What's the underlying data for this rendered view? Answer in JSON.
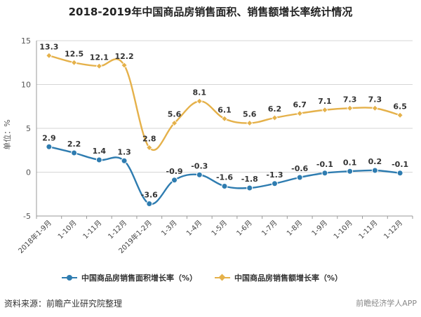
{
  "title": "2018-2019年中国商品房销售面积、销售额增长率统计情况",
  "source_text": "资料来源：前瞻产业研究院整理",
  "bottom_watermark": "前瞻经济学人APP",
  "colors": {
    "area": "#2e7cb0",
    "sales": "#e5b14a",
    "grid": "#d6d6d6",
    "axis": "#999999"
  },
  "chart_data": {
    "type": "line",
    "ylabel": "单位：%",
    "ylim": [
      -5,
      15
    ],
    "yticks": [
      -5,
      0,
      5,
      10,
      15
    ],
    "grid": true,
    "legend_position": "bottom",
    "categories": [
      "2018年1-9月",
      "1-10月",
      "1-11月",
      "1-12月",
      "2019年1-2月",
      "1-3月",
      "1-4月",
      "1-5月",
      "1-6月",
      "1-7月",
      "1-8月",
      "1-9月",
      "1-10月",
      "1-11月",
      "1-12月"
    ],
    "series": [
      {
        "name": "中国商品房销售面积增长率（%）",
        "marker": "circle",
        "color": "#2e7cb0",
        "values": [
          2.9,
          2.2,
          1.4,
          1.3,
          -3.6,
          -0.9,
          -0.3,
          -1.6,
          -1.8,
          -1.3,
          -0.6,
          -0.1,
          0.1,
          0.2,
          -0.1
        ]
      },
      {
        "name": "中国商品房销售额增长率（%）",
        "marker": "diamond",
        "color": "#e5b14a",
        "values": [
          13.3,
          12.5,
          12.1,
          12.2,
          2.8,
          5.6,
          8.1,
          6.1,
          5.6,
          6.2,
          6.7,
          7.1,
          7.3,
          7.3,
          6.5
        ]
      }
    ]
  }
}
